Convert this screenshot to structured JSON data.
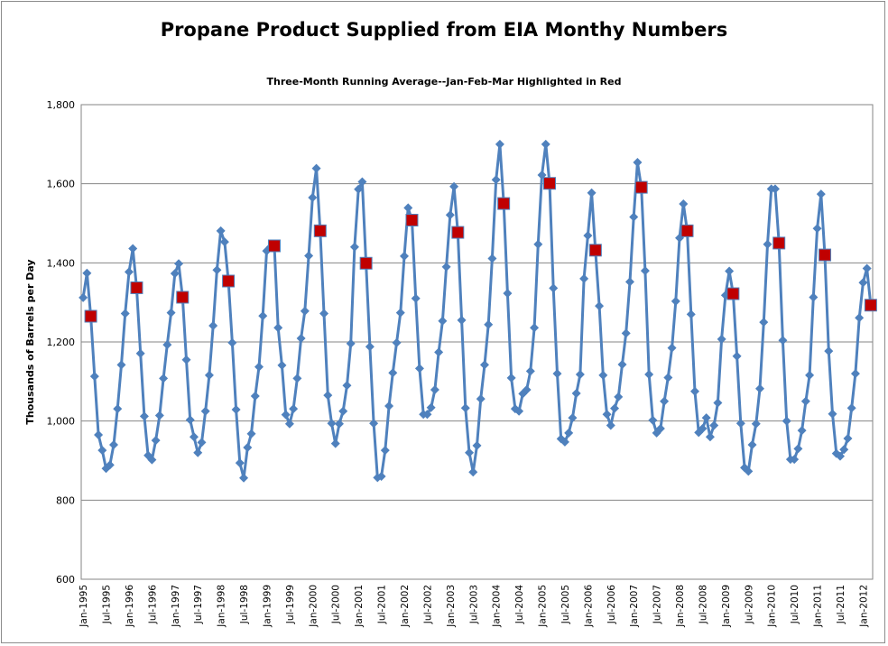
{
  "chart_data": {
    "type": "line",
    "title": "Propane Product Supplied from EIA Monthy Numbers",
    "subtitle": "Three-Month Running Average--Jan-Feb-Mar  Highlighted in Red",
    "ylabel": "Thousands of Barrels per Day",
    "xlabel": "",
    "ylim": [
      600,
      1800
    ],
    "yticks": [
      "600",
      "800",
      "1,000",
      "1,200",
      "1,400",
      "1,600",
      "1,800"
    ],
    "ytick_values": [
      600,
      800,
      1000,
      1200,
      1400,
      1600,
      1800
    ],
    "grid": true,
    "legend": "none",
    "x_start": "Jan-1995",
    "x_end": "Mar-2012",
    "xticks": [
      "Jan-1995",
      "Jul-1995",
      "Jan-1996",
      "Jul-1996",
      "Jan-1997",
      "Jul-1997",
      "Jan-1998",
      "Jul-1998",
      "Jan-1999",
      "Jul-1999",
      "Jan-2000",
      "Jul-2000",
      "Jan-2001",
      "Jul-2001",
      "Jan-2002",
      "Jul-2002",
      "Jan-2003",
      "Jul-2003",
      "Jan-2004",
      "Jul-2004",
      "Jan-2005",
      "Jul-2005",
      "Jan-2006",
      "Jul-2006",
      "Jan-2007",
      "Jul-2007",
      "Jan-2008",
      "Jul-2008",
      "Jan-2009",
      "Jul-2009",
      "Jan-2010",
      "Jul-2010",
      "Jan-2011",
      "Jul-2011",
      "Jan-2012"
    ],
    "highlight": "Mar (Jan-Feb-Mar average)",
    "colors": {
      "line": "#4F81BD",
      "highlight": "#C00000",
      "grid": "#868686"
    },
    "series": [
      {
        "years": [
          1995,
          1996,
          1997,
          1998,
          1999,
          2000,
          2001,
          2002,
          2003,
          2004,
          2005,
          2006,
          2007,
          2008,
          2009,
          2010,
          2011,
          2012
        ],
        "values_by_year": [
          [
            1312,
            1374,
            1265,
            1113,
            965,
            926,
            880,
            889,
            940,
            1031,
            1142,
            1272
          ],
          [
            1377,
            1436,
            1337,
            1171,
            1012,
            913,
            902,
            951,
            1014,
            1108,
            1193,
            1274
          ],
          [
            1373,
            1398,
            1313,
            1155,
            1003,
            960,
            920,
            946,
            1025,
            1116,
            1241,
            1382
          ],
          [
            1481,
            1453,
            1354,
            1198,
            1029,
            894,
            856,
            933,
            968,
            1063,
            1137,
            1266
          ],
          [
            1430,
            1440,
            1443,
            1236,
            1141,
            1016,
            993,
            1031,
            1108,
            1209,
            1278,
            1418
          ],
          [
            1565,
            1639,
            1481,
            1272,
            1065,
            994,
            943,
            993,
            1025,
            1090,
            1196,
            1440
          ],
          [
            1586,
            1605,
            1399,
            1188,
            994,
            857,
            860,
            926,
            1038,
            1122,
            1198,
            1274
          ],
          [
            1417,
            1539,
            1508,
            1310,
            1133,
            1017,
            1017,
            1034,
            1079,
            1174,
            1253,
            1390
          ],
          [
            1521,
            1593,
            1477,
            1255,
            1033,
            920,
            871,
            938,
            1056,
            1142,
            1244,
            1411
          ],
          [
            1610,
            1700,
            1550,
            1323,
            1109,
            1031,
            1025,
            1069,
            1079,
            1126,
            1236,
            1447
          ],
          [
            1622,
            1700,
            1601,
            1336,
            1120,
            955,
            947,
            970,
            1008,
            1070,
            1118,
            1360
          ],
          [
            1469,
            1577,
            1432,
            1291,
            1116,
            1017,
            989,
            1032,
            1061,
            1143,
            1222,
            1352
          ],
          [
            1516,
            1654,
            1591,
            1380,
            1118,
            1002,
            970,
            981,
            1050,
            1110,
            1185,
            1303
          ],
          [
            1463,
            1549,
            1481,
            1270,
            1075,
            971,
            981,
            1008,
            960,
            989,
            1046,
            1207
          ],
          [
            1318,
            1379,
            1322,
            1164,
            994,
            882,
            873,
            940,
            993,
            1082,
            1250,
            1447
          ],
          [
            1587,
            1587,
            1450,
            1204,
            1000,
            903,
            903,
            930,
            976,
            1050,
            1116,
            1313
          ],
          [
            1487,
            1574,
            1420,
            1177,
            1018,
            918,
            911,
            928,
            956,
            1033,
            1120,
            1261
          ],
          [
            1350,
            1386,
            1293
          ]
        ]
      }
    ]
  }
}
